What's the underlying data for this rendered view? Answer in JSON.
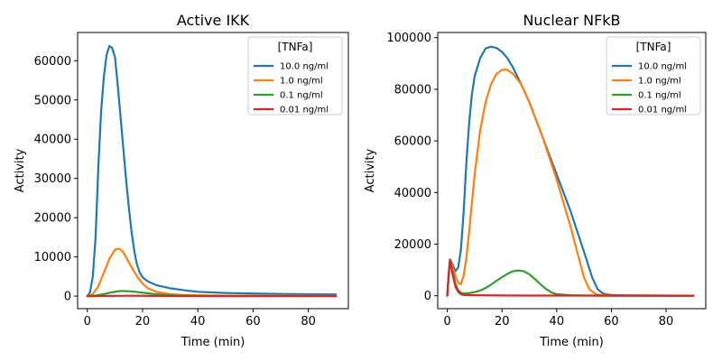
{
  "chart_data": [
    {
      "type": "line",
      "title": "Active IKK",
      "xlabel": "Time (min)",
      "ylabel": "Activity",
      "xlim": [
        -3.5,
        94.5
      ],
      "ylim": [
        -3200,
        67200
      ],
      "xticks": [
        0,
        20,
        40,
        60,
        80
      ],
      "yticks": [
        0,
        10000,
        20000,
        30000,
        40000,
        50000,
        60000
      ],
      "legend_title": "[TNFa]",
      "legend_position": "top-right",
      "series": [
        {
          "name": "10.0 ng/ml",
          "color": "#1f77b4",
          "x": [
            0,
            1,
            2,
            3,
            4,
            5,
            6,
            7,
            8,
            9,
            10,
            11,
            12,
            13,
            14,
            15,
            16,
            17,
            18,
            19,
            20,
            22,
            25,
            30,
            35,
            40,
            50,
            60,
            70,
            80,
            90
          ],
          "y": [
            0,
            1000,
            5000,
            15000,
            33000,
            47000,
            56000,
            61500,
            63800,
            63200,
            61000,
            54000,
            46000,
            38000,
            30000,
            23000,
            16500,
            11500,
            8000,
            6000,
            4800,
            3700,
            2800,
            2000,
            1500,
            1100,
            800,
            650,
            550,
            480,
            420
          ]
        },
        {
          "name": "1.0 ng/ml",
          "color": "#ff7f0e",
          "x": [
            0,
            2,
            4,
            6,
            8,
            10,
            11,
            12,
            13,
            14,
            16,
            18,
            20,
            22,
            25,
            30,
            35,
            40,
            50,
            60,
            90
          ],
          "y": [
            0,
            500,
            2500,
            6000,
            9500,
            11800,
            12100,
            11900,
            11200,
            10000,
            7400,
            5000,
            3200,
            2000,
            1100,
            500,
            300,
            200,
            120,
            80,
            50
          ]
        },
        {
          "name": "0.1 ng/ml",
          "color": "#2ca02c",
          "x": [
            0,
            3,
            6,
            9,
            12,
            15,
            18,
            21,
            24,
            28,
            32,
            36,
            40,
            50,
            60,
            90
          ],
          "y": [
            0,
            150,
            500,
            1000,
            1300,
            1250,
            1050,
            800,
            550,
            300,
            150,
            80,
            40,
            20,
            10,
            5
          ]
        },
        {
          "name": "0.01 ng/ml",
          "color": "#d62728",
          "x": [
            0,
            5,
            10,
            15,
            20,
            30,
            40,
            60,
            90
          ],
          "y": [
            0,
            30,
            70,
            90,
            80,
            50,
            30,
            10,
            5
          ]
        }
      ]
    },
    {
      "type": "line",
      "title": "Nuclear NFkB",
      "xlabel": "Time (min)",
      "ylabel": "Activity",
      "xlim": [
        -3.5,
        94.5
      ],
      "ylim": [
        -5000,
        102000
      ],
      "xticks": [
        0,
        20,
        40,
        60,
        80
      ],
      "yticks": [
        0,
        20000,
        40000,
        60000,
        80000,
        100000
      ],
      "legend_title": "[TNFa]",
      "legend_position": "top-right",
      "series": [
        {
          "name": "10.0 ng/ml",
          "color": "#1f77b4",
          "x": [
            0,
            0.5,
            1,
            2,
            3,
            4,
            5,
            6,
            7,
            8,
            9,
            10,
            12,
            14,
            16,
            18,
            20,
            22,
            24,
            27,
            30,
            35,
            40,
            45,
            50,
            53,
            55,
            57,
            60,
            65,
            70,
            80,
            90
          ],
          "y": [
            0,
            8000,
            14000,
            12000,
            9500,
            11000,
            18000,
            33000,
            52000,
            67000,
            78000,
            85000,
            92000,
            95800,
            96500,
            96000,
            94500,
            92000,
            88500,
            82000,
            75000,
            61000,
            47000,
            33000,
            17000,
            7000,
            2500,
            800,
            300,
            150,
            100,
            60,
            40
          ]
        },
        {
          "name": "1.0 ng/ml",
          "color": "#ff7f0e",
          "x": [
            0,
            0.5,
            1,
            2,
            3,
            4,
            5,
            6,
            7,
            8,
            9,
            10,
            12,
            14,
            16,
            18,
            20,
            21,
            22,
            24,
            27,
            30,
            35,
            40,
            45,
            48,
            50,
            52,
            54,
            56,
            60,
            70,
            80,
            90
          ],
          "y": [
            0,
            8000,
            14000,
            11000,
            7500,
            5000,
            4500,
            8000,
            15000,
            25000,
            36000,
            47000,
            64000,
            75000,
            82000,
            86000,
            87500,
            87700,
            87500,
            86000,
            82000,
            75000,
            61000,
            45000,
            27000,
            15000,
            7000,
            2500,
            800,
            300,
            100,
            60,
            40,
            30
          ]
        },
        {
          "name": "0.1 ng/ml",
          "color": "#2ca02c",
          "x": [
            0,
            0.5,
            1,
            2,
            3,
            4,
            5,
            6,
            8,
            10,
            12,
            14,
            16,
            18,
            20,
            22,
            24,
            26,
            28,
            30,
            32,
            34,
            36,
            38,
            40,
            45,
            50,
            60,
            90
          ],
          "y": [
            0,
            8000,
            14000,
            9000,
            4500,
            2200,
            1200,
            900,
            1000,
            1400,
            2000,
            3000,
            4300,
            5800,
            7200,
            8500,
            9500,
            9800,
            9500,
            8300,
            6500,
            4500,
            2700,
            1300,
            600,
            200,
            100,
            50,
            30
          ]
        },
        {
          "name": "0.01 ng/ml",
          "color": "#d62728",
          "x": [
            0,
            0.5,
            1,
            2,
            3,
            4,
            5,
            6,
            8,
            10,
            15,
            20,
            30,
            40,
            60,
            90
          ],
          "y": [
            0,
            8000,
            14000,
            8000,
            3500,
            1500,
            600,
            300,
            200,
            200,
            150,
            100,
            80,
            60,
            40,
            30
          ]
        }
      ]
    }
  ]
}
